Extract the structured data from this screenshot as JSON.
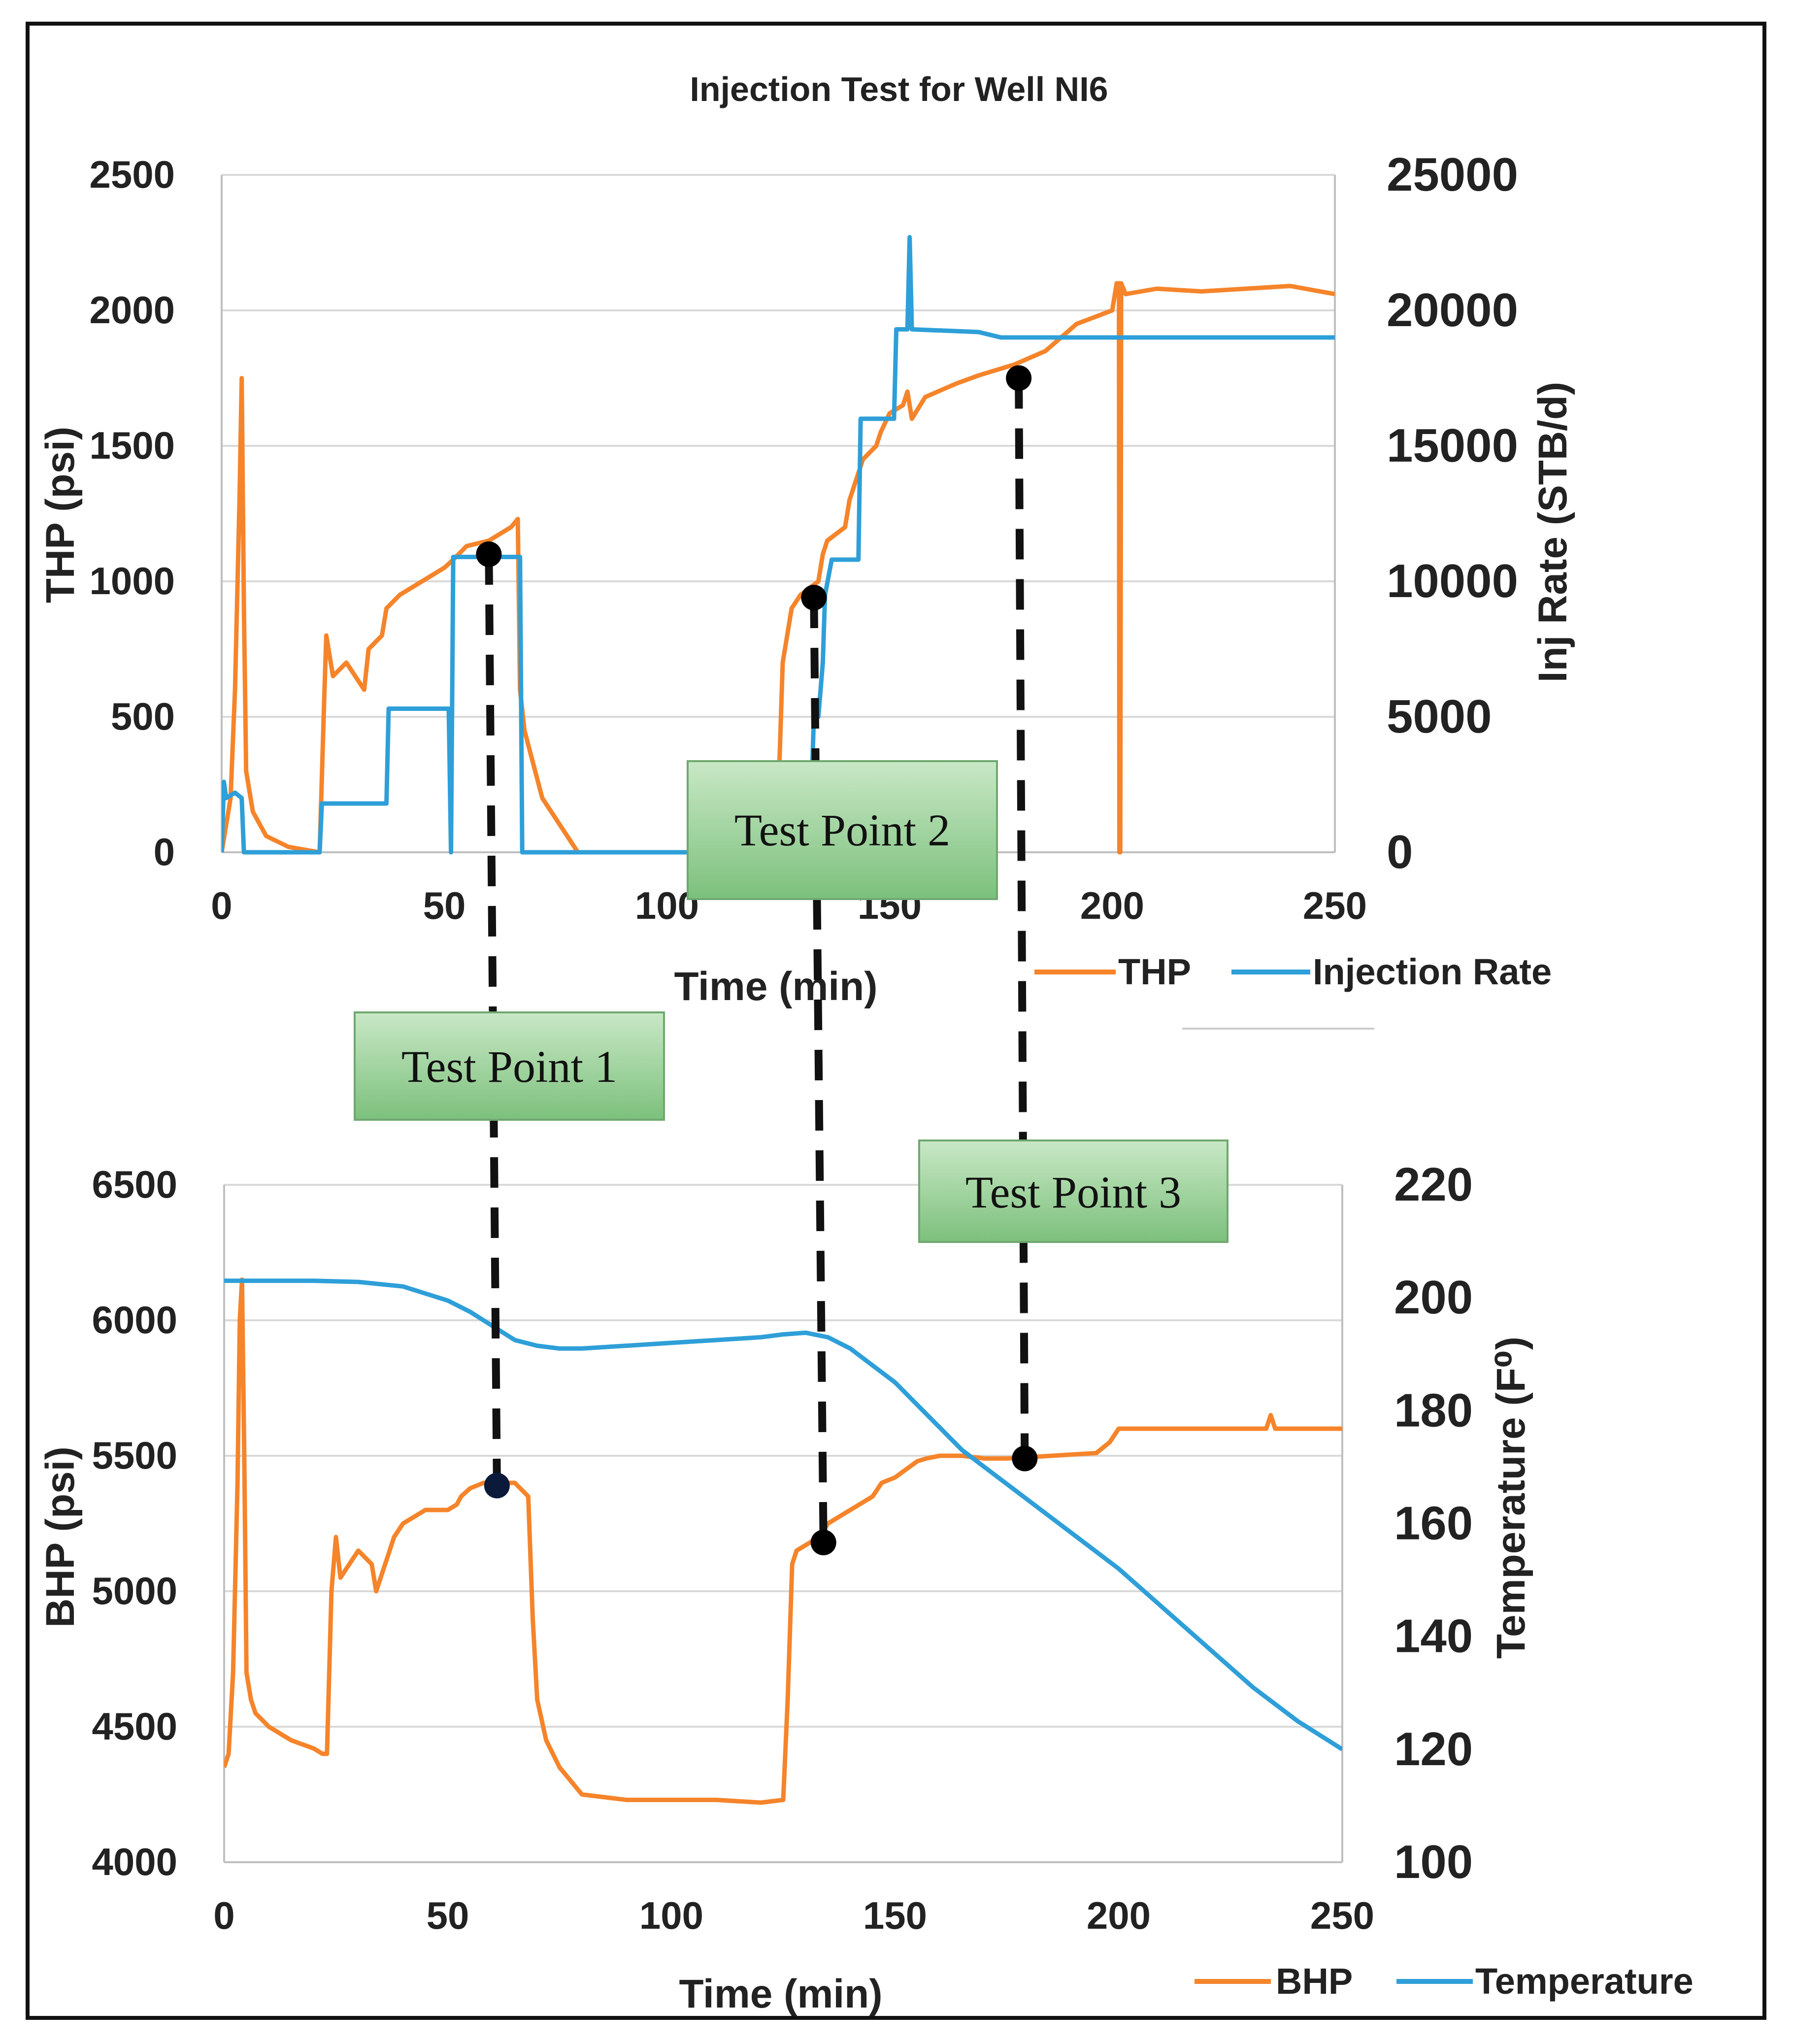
{
  "chart_data": [
    {
      "type": "line",
      "title": "Injection Test for Well NI6",
      "xlabel": "Time (min)",
      "ylabel": "THP (psi)",
      "y2label": "Inj Rate (STB/d)",
      "xlim": [
        0,
        250
      ],
      "ylim": [
        0,
        2500
      ],
      "y2lim": [
        0,
        25000
      ],
      "x_ticks": [
        "0",
        "50",
        "100",
        "150",
        "200",
        "250"
      ],
      "y_ticks": [
        "0",
        "500",
        "1000",
        "1500",
        "2000",
        "2500"
      ],
      "y2_ticks": [
        "0",
        "5000",
        "10000",
        "15000",
        "20000",
        "25000"
      ],
      "grid": true,
      "legend": "bottom-right",
      "series": [
        {
          "name": "THP",
          "axis": "left",
          "color": "#F5842A",
          "x": [
            0,
            2,
            3,
            4,
            4.5,
            5,
            5.5,
            7,
            10,
            15,
            22,
            23,
            23.5,
            25,
            28,
            32,
            33,
            36,
            37,
            40,
            45,
            50,
            52,
            55,
            60,
            65,
            66.5,
            67,
            68,
            72,
            78,
            80,
            100,
            123,
            125,
            126,
            128,
            130,
            134,
            135,
            136,
            140,
            141,
            143,
            144,
            147,
            148,
            150,
            153,
            154,
            155,
            158,
            165,
            170,
            178,
            185,
            192,
            200,
            201,
            201.5,
            201.6,
            201.8,
            202,
            202.5,
            203,
            210,
            220,
            230,
            240,
            250
          ],
          "values": [
            0,
            200,
            600,
            1300,
            1750,
            900,
            300,
            150,
            60,
            20,
            0,
            550,
            800,
            650,
            700,
            600,
            750,
            800,
            900,
            950,
            1000,
            1050,
            1080,
            1130,
            1150,
            1200,
            1230,
            600,
            450,
            200,
            50,
            0,
            0,
            0,
            200,
            700,
            900,
            950,
            1000,
            1100,
            1150,
            1200,
            1300,
            1400,
            1450,
            1500,
            1550,
            1620,
            1650,
            1700,
            1600,
            1680,
            1730,
            1760,
            1800,
            1850,
            1950,
            2000,
            2100,
            2100,
            0,
            0,
            2100,
            2080,
            2060,
            2080,
            2070,
            2080,
            2090,
            2060
          ]
        },
        {
          "name": "Injection Rate",
          "axis": "right",
          "color": "#2E9FD8",
          "x": [
            0,
            0.5,
            1,
            3,
            4.5,
            5,
            22,
            22.5,
            37,
            37.5,
            51,
            51.5,
            52,
            67,
            67.5,
            130,
            132,
            133,
            134,
            135,
            135.5,
            137,
            140,
            143,
            143.5,
            151,
            151.5,
            153,
            154,
            154.5,
            155,
            170,
            175,
            250
          ],
          "values": [
            0,
            2600,
            2000,
            2200,
            2000,
            0,
            0,
            1800,
            1800,
            5300,
            5300,
            0,
            10900,
            10900,
            0,
            0,
            0,
            5000,
            5000,
            7000,
            9500,
            10800,
            10800,
            10800,
            16000,
            16000,
            19300,
            19300,
            19300,
            22700,
            19300,
            19200,
            19000,
            19000
          ]
        }
      ],
      "markers": [
        {
          "name": "Test Point 1",
          "x": 60,
          "value": 1100
        },
        {
          "name": "Test Point 2",
          "x": 133,
          "value": 940
        },
        {
          "name": "Test Point 3",
          "x": 179,
          "value": 1750
        }
      ]
    },
    {
      "type": "line",
      "title": "",
      "xlabel": "Time (min)",
      "ylabel": "BHP (psi)",
      "y2label": "Temperature (F⁰)",
      "xlim": [
        0,
        250
      ],
      "ylim": [
        4000,
        6500
      ],
      "y2lim": [
        100,
        220
      ],
      "x_ticks": [
        "0",
        "50",
        "100",
        "150",
        "200",
        "250"
      ],
      "y_ticks": [
        "4000",
        "4500",
        "5000",
        "5500",
        "6000",
        "6500"
      ],
      "y2_ticks": [
        "100",
        "120",
        "140",
        "160",
        "180",
        "200",
        "220"
      ],
      "grid": true,
      "legend": "bottom-right",
      "series": [
        {
          "name": "BHP",
          "axis": "left",
          "color": "#F5842A",
          "x": [
            0,
            1,
            2,
            3,
            3.5,
            4,
            4.5,
            5,
            6,
            7,
            10,
            15,
            20,
            22,
            23,
            24,
            25,
            26,
            28,
            30,
            33,
            34,
            35,
            37,
            38,
            40,
            45,
            50,
            52,
            53,
            55,
            58,
            62,
            65,
            68,
            69,
            70,
            72,
            75,
            80,
            85,
            90,
            100,
            110,
            120,
            125,
            126,
            127,
            128,
            130,
            133,
            135,
            140,
            145,
            147,
            150,
            155,
            157,
            160,
            165,
            170,
            175,
            185,
            195,
            198,
            200,
            205,
            210,
            220,
            230,
            233,
            234,
            235,
            240,
            250
          ],
          "values": [
            4350,
            4400,
            4700,
            5400,
            6000,
            6150,
            5500,
            4700,
            4600,
            4550,
            4500,
            4450,
            4420,
            4400,
            4400,
            5000,
            5200,
            5050,
            5100,
            5150,
            5100,
            5000,
            5050,
            5150,
            5200,
            5250,
            5300,
            5300,
            5320,
            5350,
            5380,
            5400,
            5400,
            5400,
            5350,
            4900,
            4600,
            4450,
            4350,
            4250,
            4240,
            4230,
            4230,
            4230,
            4220,
            4230,
            4600,
            5100,
            5150,
            5170,
            5200,
            5250,
            5300,
            5350,
            5400,
            5420,
            5480,
            5490,
            5500,
            5500,
            5490,
            5490,
            5500,
            5510,
            5550,
            5600,
            5600,
            5600,
            5600,
            5600,
            5600,
            5650,
            5600,
            5600,
            5600
          ]
        },
        {
          "name": "Temperature",
          "axis": "right",
          "color": "#2E9FD8",
          "x": [
            0,
            20,
            30,
            40,
            50,
            55,
            60,
            65,
            70,
            75,
            80,
            90,
            100,
            110,
            120,
            125,
            130,
            135,
            140,
            145,
            150,
            155,
            160,
            165,
            170,
            175,
            180,
            190,
            200,
            210,
            220,
            230,
            240,
            250
          ],
          "values": [
            203,
            203,
            202.8,
            202,
            199.5,
            197.5,
            195,
            192.5,
            191.5,
            191,
            191,
            191.5,
            192,
            192.5,
            193,
            193.5,
            193.8,
            193,
            191,
            188,
            185,
            181,
            177,
            173,
            170,
            167,
            164,
            158,
            152,
            145,
            138,
            131,
            125,
            120
          ]
        }
      ],
      "markers": [
        {
          "name": "Test Point 1",
          "x": 61,
          "value": 5390
        },
        {
          "name": "Test Point 2",
          "x": 134,
          "value": 5180
        },
        {
          "name": "Test Point 3",
          "x": 179,
          "value": 5490
        }
      ]
    }
  ],
  "callouts": [
    {
      "label": "Test Point 1"
    },
    {
      "label": "Test Point 2"
    },
    {
      "label": "Test Point 3"
    }
  ],
  "colors": {
    "orange": "#F5842A",
    "blue": "#2E9FD8",
    "callout_fill": "#8CCB8E",
    "callout_stroke": "#6FA86F",
    "grid": "#D9D9D9",
    "axis": "#BFBFBF"
  }
}
